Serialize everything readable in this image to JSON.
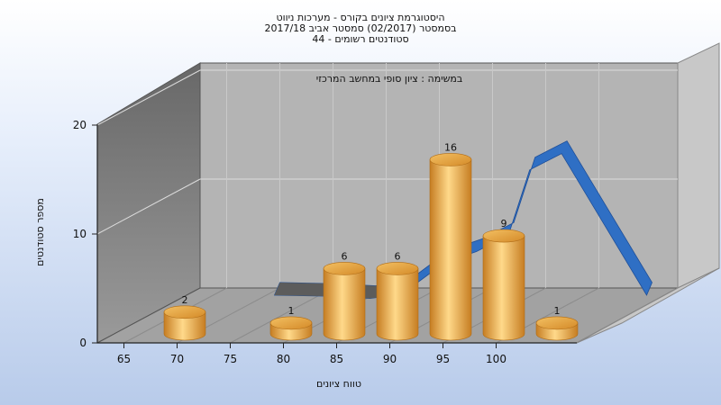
{
  "chart_data": {
    "type": "bar",
    "title_lines": [
      "היסטוגרמת ציונים בקורס - מערכות ניווט",
      "בסמסטר  (02/2017)  סמסטר אביב 2017/18",
      "סטודנטים רשומים - 44"
    ],
    "subtitle": "במשימה : ציון סופי במחשב המרכזי",
    "xlabel": "טווח ציונים",
    "ylabel": "מספר סטודנטים",
    "x_ticks": [
      "65",
      "70",
      "75",
      "80",
      "85",
      "90",
      "95",
      "100"
    ],
    "y_ticks": [
      "0",
      "10",
      "20"
    ],
    "ylim": [
      0,
      20
    ],
    "bars": [
      {
        "x": 67.5,
        "value": 2,
        "label": "2"
      },
      {
        "x": 77.5,
        "value": 1,
        "label": "1"
      },
      {
        "x": 82.5,
        "value": 6,
        "label": "6"
      },
      {
        "x": 87.5,
        "value": 6,
        "label": "6"
      },
      {
        "x": 92.5,
        "value": 16,
        "label": "16"
      },
      {
        "x": 97.5,
        "value": 9,
        "label": "9"
      },
      {
        "x": 102.5,
        "value": 1,
        "label": "1"
      }
    ],
    "curve": {
      "x": [
        70,
        75,
        79,
        82,
        86,
        89,
        92,
        94,
        97,
        101,
        105
      ],
      "y": [
        0.5,
        0.4,
        0.2,
        0.6,
        3.5,
        4.5,
        6.0,
        12.0,
        13.5,
        7.0,
        0.5
      ]
    },
    "colors": {
      "bar": "#e8a33d",
      "curve": "#2f6fc4",
      "back_wall": "#b0b0b0",
      "side_wall": "#7c7c7c",
      "floor": "#9a9a9a"
    },
    "grid": true
  }
}
